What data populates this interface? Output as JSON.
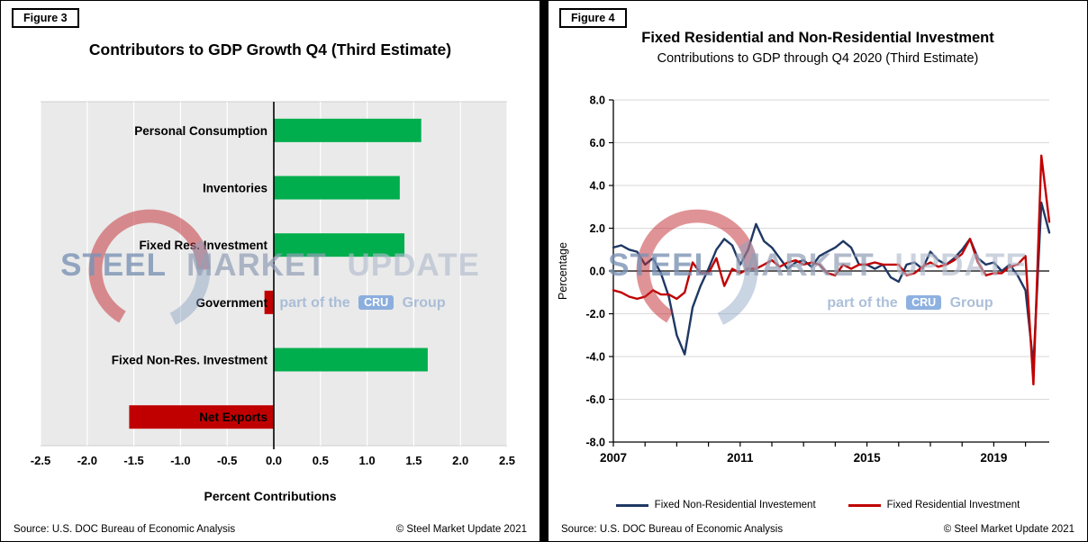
{
  "panels": {
    "left": {
      "figure_label": "Figure 3",
      "source": "Source: U.S. DOC Bureau of Economic Analysis",
      "copyright": "© Steel Market Update 2021"
    },
    "right": {
      "figure_label": "Figure 4",
      "source": "Source: U.S. DOC Bureau of Economic Analysis",
      "copyright": "© Steel Market Update 2021"
    }
  },
  "watermark": {
    "word1": "STEEL",
    "word2": "MARKET",
    "word3": "UPDATE",
    "tagline_prefix": "part of the",
    "cru_badge": "CRU",
    "tagline_suffix": "Group",
    "logo_red": "#c1272d",
    "logo_blue": "#8aa2c0"
  },
  "chart_data": [
    {
      "type": "bar",
      "orientation": "horizontal",
      "title": "Contributors to GDP Growth Q4 (Third Estimate)",
      "xlabel": "Percent Contributions",
      "categories": [
        "Personal Consumption",
        "Inventories",
        "Fixed Res. Investment",
        "Government",
        "Fixed Non-Res. Investment",
        "Net Exports"
      ],
      "values": [
        1.58,
        1.35,
        1.4,
        -0.1,
        1.65,
        -1.55
      ],
      "xlim": [
        -2.5,
        2.5
      ],
      "xtick_step": 0.5,
      "xtick_labels": [
        "-2.5",
        "-2.0",
        "-1.5",
        "-1.0",
        "-0.5",
        "0.0",
        "0.5",
        "1.0",
        "1.5",
        "2.0",
        "2.5"
      ],
      "positive_color": "#00AE4D",
      "negative_color": "#C00000",
      "plot_bg": "#EAEAEA",
      "grid_color": "#FFFFFF",
      "grid": true
    },
    {
      "type": "line",
      "title": "Fixed Residential and Non-Residential Investment",
      "subtitle": "Contributions to GDP through Q4 2020 (Third Estimate)",
      "ylabel": "Percentage",
      "ylim": [
        -8,
        8
      ],
      "ytick_labels": [
        "8.0",
        "6.0",
        "4.0",
        "2.0",
        "0.0",
        "-2.0",
        "-4.0",
        "-6.0",
        "-8.0"
      ],
      "x_years": {
        "start": 2007,
        "end": 2020,
        "points_per_year": 4
      },
      "xtick_labels": [
        {
          "label": "2007",
          "index": 0
        },
        {
          "label": "2011",
          "index": 16
        },
        {
          "label": "2015",
          "index": 32
        },
        {
          "label": "2019",
          "index": 48
        }
      ],
      "grid_color": "#D9D9D9",
      "legend_position": "bottom",
      "series": [
        {
          "name": "Fixed Non-Residential Investement",
          "color": "#1F3864",
          "values": [
            1.1,
            1.2,
            1.0,
            0.9,
            0.3,
            0.6,
            -0.1,
            -1.2,
            -3.0,
            -3.9,
            -1.7,
            -0.7,
            0.1,
            1.0,
            1.5,
            1.2,
            0.3,
            1.0,
            2.2,
            1.4,
            1.1,
            0.6,
            0.1,
            0.4,
            0.5,
            0.2,
            0.7,
            0.9,
            1.1,
            1.4,
            1.1,
            0.3,
            0.3,
            0.1,
            0.3,
            -0.3,
            -0.5,
            0.3,
            0.4,
            0.1,
            0.9,
            0.5,
            0.3,
            0.6,
            1.0,
            1.5,
            0.6,
            0.3,
            0.4,
            0.0,
            0.3,
            -0.2,
            -0.9,
            -4.4,
            3.2,
            1.8
          ]
        },
        {
          "name": "Fixed Residential Investment",
          "color": "#C00000",
          "values": [
            -0.9,
            -1.0,
            -1.2,
            -1.3,
            -1.2,
            -0.9,
            -1.1,
            -1.1,
            -1.3,
            -1.0,
            0.4,
            -0.1,
            -0.1,
            0.6,
            -0.7,
            0.1,
            -0.1,
            0.1,
            0.1,
            0.3,
            0.5,
            0.2,
            0.4,
            0.5,
            0.3,
            0.4,
            0.3,
            -0.1,
            -0.2,
            0.3,
            0.1,
            0.3,
            0.3,
            0.4,
            0.3,
            0.3,
            0.3,
            -0.2,
            -0.1,
            0.2,
            0.4,
            0.2,
            0.3,
            0.5,
            0.8,
            1.5,
            0.4,
            -0.2,
            -0.1,
            -0.1,
            0.2,
            0.3,
            0.7,
            -5.3,
            5.4,
            2.3
          ]
        }
      ]
    }
  ]
}
